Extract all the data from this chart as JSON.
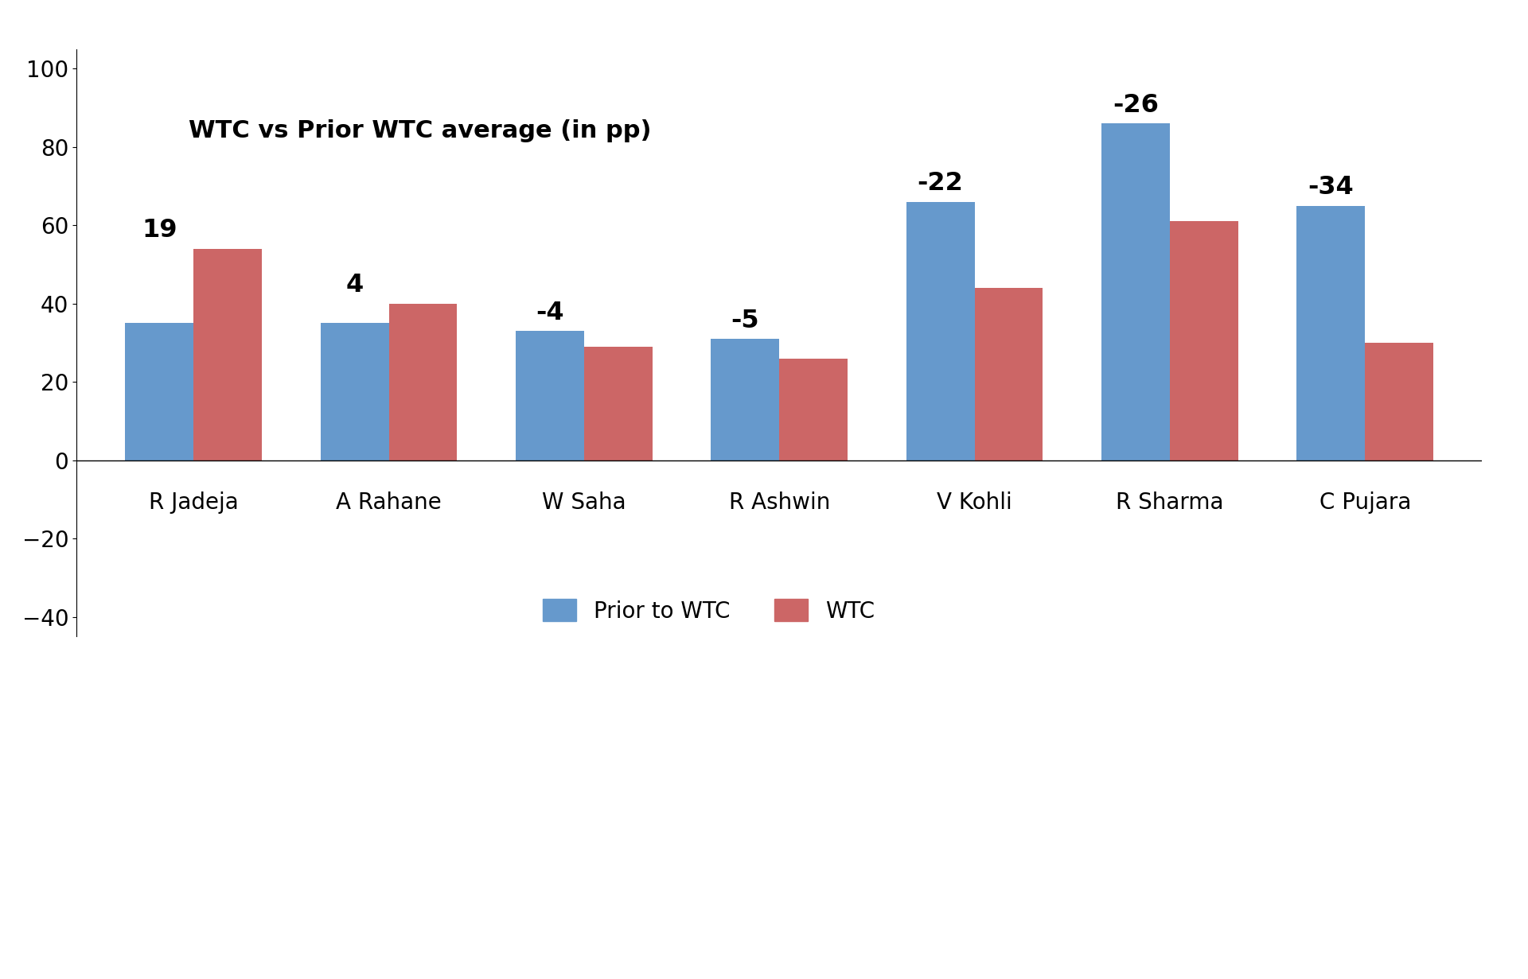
{
  "title": "WTC vs Prior WTC average (in pp)",
  "categories": [
    "R Jadeja",
    "A Rahane",
    "W Saha",
    "R Ashwin",
    "V Kohli",
    "R Sharma",
    "C Pujara"
  ],
  "prior_to_wtc": [
    35,
    35,
    33,
    31,
    66,
    86,
    65
  ],
  "wtc": [
    54,
    40,
    29,
    26,
    44,
    61,
    30
  ],
  "differences": [
    19,
    4,
    -4,
    -5,
    -22,
    -26,
    -34
  ],
  "bar_color_blue": "#6699CC",
  "bar_color_red": "#CC6666",
  "title_fontsize": 22,
  "label_fontsize": 20,
  "diff_fontsize": 23,
  "tick_fontsize": 20,
  "ylim": [
    -45,
    105
  ],
  "yticks": [
    -40,
    -20,
    0,
    20,
    40,
    60,
    80,
    100
  ],
  "legend_labels": [
    "Prior to WTC",
    "WTC"
  ],
  "background_color": "#FFFFFF",
  "bar_width": 0.35
}
